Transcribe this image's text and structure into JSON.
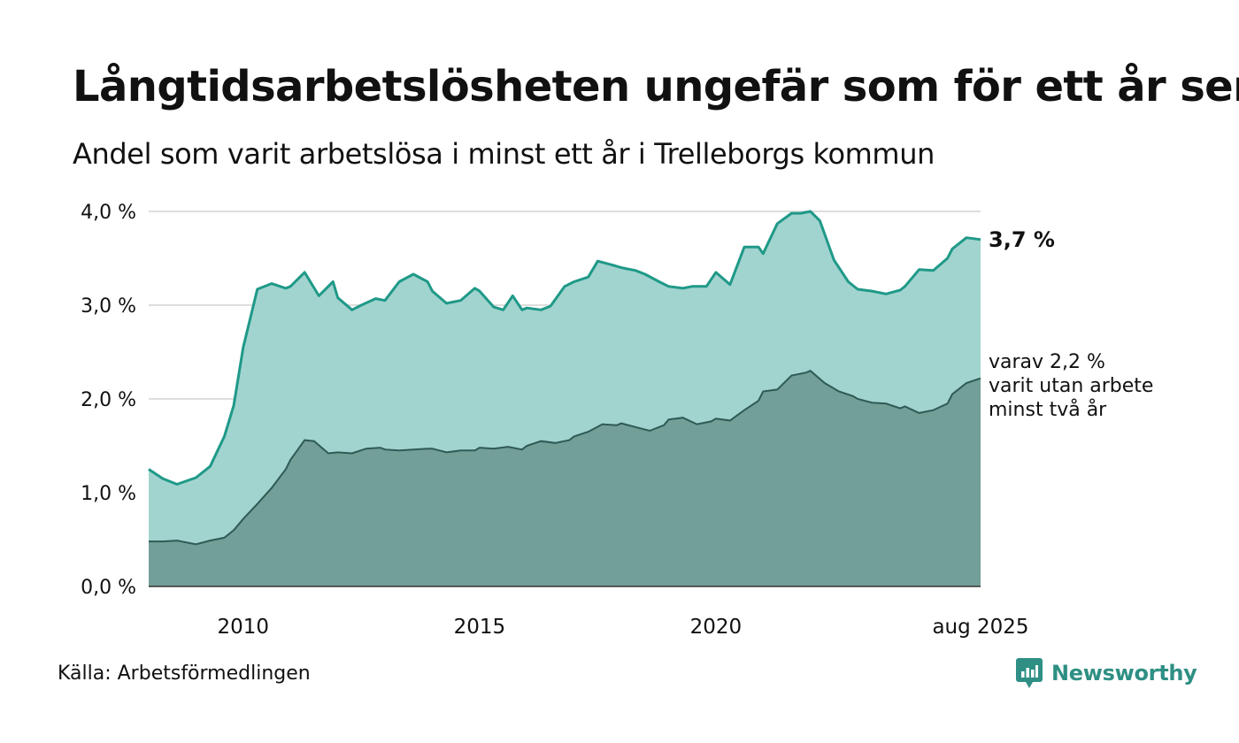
{
  "header": {
    "title": "Långtidsarbetslösheten ungefär som för ett år sen",
    "subtitle": "Andel som varit arbetslösa i minst ett år i Trelleborgs kommun"
  },
  "footer": {
    "source": "Källa: Arbetsförmedlingen",
    "brand": "Newsworthy"
  },
  "colors": {
    "total_line": "#1f9988",
    "total_fill": "#a2d4cf",
    "two_year_line": "#2f5a55",
    "two_year_fill": "#729f98",
    "grid": "#dddddd",
    "brand": "#2f8f84"
  },
  "icons": {
    "brand_logo": "bar-chart-speech-bubble-icon"
  },
  "chart_data": {
    "type": "area",
    "ylim": [
      0,
      4
    ],
    "xlim": [
      2008.0,
      2025.6
    ],
    "yticks": [
      {
        "value": 0,
        "label": "0,0 %"
      },
      {
        "value": 1,
        "label": "1,0 %"
      },
      {
        "value": 2,
        "label": "2,0 %"
      },
      {
        "value": 3,
        "label": "3,0 %"
      },
      {
        "value": 4,
        "label": "4,0 %"
      }
    ],
    "xticks": [
      {
        "value": 2010,
        "label": "2010"
      },
      {
        "value": 2015,
        "label": "2015"
      },
      {
        "value": 2020,
        "label": "2020"
      },
      {
        "value": 2025.6,
        "label": "aug 2025"
      }
    ],
    "grid": true,
    "end_label": "3,7 %",
    "annotation": [
      "varav 2,2 %",
      "varit utan arbete",
      "minst två år"
    ],
    "series": [
      {
        "key": "total",
        "x": [
          2008.0,
          2008.3,
          2008.6,
          2009.0,
          2009.3,
          2009.6,
          2009.8,
          2010.0,
          2010.3,
          2010.6,
          2010.9,
          2011.0,
          2011.3,
          2011.6,
          2011.9,
          2012.0,
          2012.3,
          2012.5,
          2012.8,
          2013.0,
          2013.3,
          2013.6,
          2013.9,
          2014.0,
          2014.3,
          2014.6,
          2014.9,
          2015.0,
          2015.3,
          2015.5,
          2015.7,
          2015.9,
          2016.0,
          2016.3,
          2016.5,
          2016.8,
          2017.0,
          2017.3,
          2017.5,
          2017.8,
          2018.0,
          2018.3,
          2018.5,
          2018.8,
          2019.0,
          2019.3,
          2019.5,
          2019.8,
          2020.0,
          2020.3,
          2020.6,
          2020.9,
          2021.0,
          2021.3,
          2021.6,
          2021.8,
          2022.0,
          2022.2,
          2022.5,
          2022.8,
          2023.0,
          2023.3,
          2023.6,
          2023.9,
          2024.0,
          2024.3,
          2024.6,
          2024.9,
          2025.0,
          2025.3,
          2025.6
        ],
        "y": [
          1.25,
          1.15,
          1.09,
          1.16,
          1.28,
          1.6,
          1.93,
          2.55,
          3.17,
          3.23,
          3.18,
          3.2,
          3.35,
          3.1,
          3.25,
          3.08,
          2.95,
          3.0,
          3.07,
          3.05,
          3.25,
          3.33,
          3.25,
          3.15,
          3.02,
          3.05,
          3.18,
          3.15,
          2.98,
          2.95,
          3.1,
          2.95,
          2.97,
          2.95,
          2.99,
          3.2,
          3.25,
          3.3,
          3.47,
          3.43,
          3.4,
          3.37,
          3.33,
          3.25,
          3.2,
          3.18,
          3.2,
          3.2,
          3.35,
          3.22,
          3.62,
          3.62,
          3.55,
          3.87,
          3.98,
          3.98,
          4.0,
          3.9,
          3.48,
          3.25,
          3.17,
          3.15,
          3.12,
          3.16,
          3.2,
          3.38,
          3.37,
          3.5,
          3.6,
          3.72,
          3.7
        ]
      },
      {
        "key": "two_year",
        "x": [
          2008.0,
          2008.3,
          2008.6,
          2009.0,
          2009.3,
          2009.6,
          2009.8,
          2010.0,
          2010.3,
          2010.6,
          2010.9,
          2011.0,
          2011.3,
          2011.5,
          2011.8,
          2012.0,
          2012.3,
          2012.6,
          2012.9,
          2013.0,
          2013.3,
          2013.6,
          2013.9,
          2014.0,
          2014.3,
          2014.6,
          2014.9,
          2015.0,
          2015.3,
          2015.6,
          2015.9,
          2016.0,
          2016.3,
          2016.6,
          2016.9,
          2017.0,
          2017.3,
          2017.6,
          2017.9,
          2018.0,
          2018.3,
          2018.6,
          2018.9,
          2019.0,
          2019.3,
          2019.6,
          2019.9,
          2020.0,
          2020.3,
          2020.6,
          2020.9,
          2021.0,
          2021.3,
          2021.6,
          2021.9,
          2022.0,
          2022.3,
          2022.6,
          2022.9,
          2023.0,
          2023.3,
          2023.6,
          2023.9,
          2024.0,
          2024.3,
          2024.6,
          2024.9,
          2025.0,
          2025.3,
          2025.6
        ],
        "y": [
          0.48,
          0.48,
          0.49,
          0.45,
          0.49,
          0.52,
          0.6,
          0.72,
          0.88,
          1.05,
          1.25,
          1.35,
          1.56,
          1.55,
          1.42,
          1.43,
          1.42,
          1.47,
          1.48,
          1.46,
          1.45,
          1.46,
          1.47,
          1.47,
          1.43,
          1.45,
          1.45,
          1.48,
          1.47,
          1.49,
          1.46,
          1.5,
          1.55,
          1.53,
          1.56,
          1.6,
          1.65,
          1.73,
          1.72,
          1.74,
          1.7,
          1.66,
          1.72,
          1.78,
          1.8,
          1.73,
          1.76,
          1.79,
          1.77,
          1.88,
          1.98,
          2.08,
          2.1,
          2.25,
          2.28,
          2.3,
          2.17,
          2.08,
          2.03,
          2.0,
          1.96,
          1.95,
          1.9,
          1.92,
          1.85,
          1.88,
          1.95,
          2.05,
          2.17,
          2.22
        ]
      }
    ]
  }
}
